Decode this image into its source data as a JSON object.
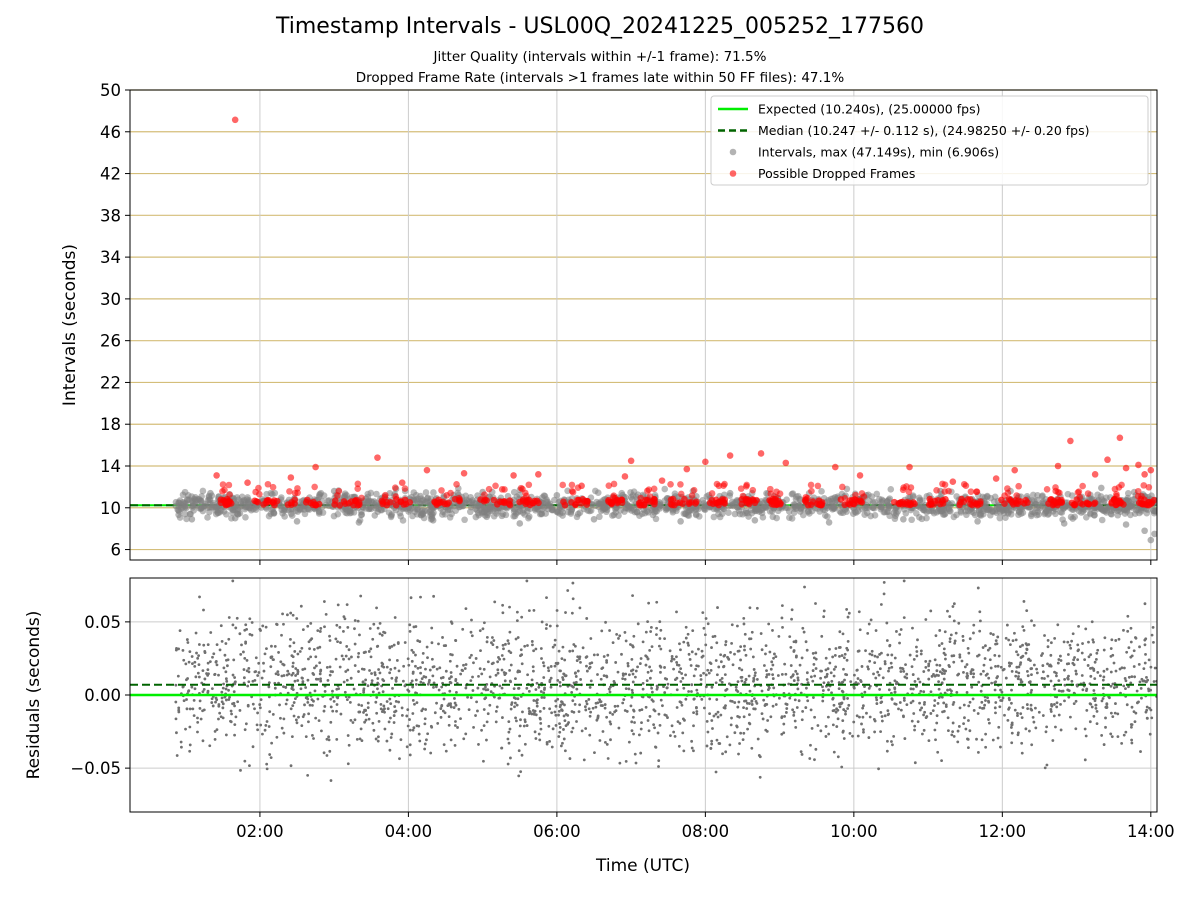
{
  "figure": {
    "title": "Timestamp Intervals - USL00Q_20241225_005252_177560",
    "subtitle_1": "Jitter Quality (intervals within +/-1 frame): 71.5%",
    "subtitle_2": "Dropped Frame Rate (intervals >1 frames late within 50 FF files): 47.1%"
  },
  "colors": {
    "expected": "#00ee00",
    "median": "#006400",
    "intervals": "#808080",
    "dropped": "#ff0000",
    "hgrid": "#d4be7a",
    "vgrid": "#cccccc"
  },
  "chart_data": [
    {
      "type": "scatter",
      "panel": "top",
      "xlabel": "",
      "ylabel": "Intervals (seconds)",
      "xlim": [
        "00:15",
        "14:05"
      ],
      "ylim": [
        5,
        50
      ],
      "yticks": [
        6,
        10,
        14,
        18,
        22,
        26,
        30,
        34,
        38,
        42,
        46,
        50
      ],
      "xticks": [
        "02:00",
        "04:00",
        "06:00",
        "08:00",
        "10:00",
        "12:00",
        "14:00"
      ],
      "show_xtick_labels": false,
      "grid": true,
      "legend_position": "top-right",
      "legend": [
        {
          "label": "Expected (10.240s), (25.00000 fps)",
          "style": "solid-line",
          "color": "#00ee00"
        },
        {
          "label": "Median (10.247 +/- 0.112 s), (24.98250 +/- 0.20 fps)",
          "style": "dashed-line",
          "color": "#006400"
        },
        {
          "label": "Intervals, max (47.149s), min (6.906s)",
          "style": "dot",
          "color": "#808080"
        },
        {
          "label": "Possible Dropped Frames",
          "style": "dot",
          "color": "#ff0000"
        }
      ],
      "series": [
        {
          "name": "Expected (10.240s), (25.00000 fps)",
          "kind": "hline",
          "y": 10.24
        },
        {
          "name": "Median (10.247 +/- 0.112 s), (24.98250 +/- 0.20 fps)",
          "kind": "hline",
          "y": 10.247
        },
        {
          "name": "Intervals, max (47.149s), min (6.906s)",
          "kind": "points",
          "x_range": [
            "00:52",
            "14:05"
          ],
          "max": 47.149,
          "min": 6.906,
          "points": [
            [
              "01:05",
              8.9
            ],
            [
              "01:20",
              11.4
            ],
            [
              "01:40",
              9.0
            ],
            [
              "02:10",
              11.3
            ],
            [
              "02:30",
              8.7
            ],
            [
              "03:00",
              11.6
            ],
            [
              "03:20",
              8.6
            ],
            [
              "03:50",
              11.8
            ],
            [
              "04:20",
              8.8
            ],
            [
              "05:00",
              11.5
            ],
            [
              "05:30",
              8.5
            ],
            [
              "06:00",
              11.2
            ],
            [
              "06:30",
              8.9
            ],
            [
              "07:00",
              11.0
            ],
            [
              "07:40",
              8.7
            ],
            [
              "08:20",
              11.4
            ],
            [
              "08:40",
              8.8
            ],
            [
              "09:10",
              11.3
            ],
            [
              "09:40",
              8.6
            ],
            [
              "10:10",
              11.2
            ],
            [
              "10:40",
              8.9
            ],
            [
              "11:10",
              11.6
            ],
            [
              "11:40",
              8.7
            ],
            [
              "12:20",
              11.1
            ],
            [
              "12:50",
              8.5
            ],
            [
              "13:20",
              11.9
            ],
            [
              "13:40",
              8.4
            ],
            [
              "13:55",
              7.8
            ],
            [
              "14:00",
              6.906
            ],
            [
              "14:03",
              7.5
            ]
          ]
        },
        {
          "name": "Possible Dropped Frames",
          "kind": "points",
          "points": [
            [
              "01:40",
              47.149
            ],
            [
              "01:25",
              13.1
            ],
            [
              "01:50",
              12.4
            ],
            [
              "02:25",
              12.9
            ],
            [
              "02:45",
              13.9
            ],
            [
              "03:35",
              14.8
            ],
            [
              "03:55",
              12.4
            ],
            [
              "04:15",
              13.6
            ],
            [
              "04:45",
              13.3
            ],
            [
              "05:25",
              13.1
            ],
            [
              "05:45",
              13.2
            ],
            [
              "06:20",
              12.1
            ],
            [
              "06:55",
              13.0
            ],
            [
              "07:00",
              14.5
            ],
            [
              "07:25",
              12.6
            ],
            [
              "07:45",
              13.7
            ],
            [
              "08:00",
              14.4
            ],
            [
              "08:20",
              15.0
            ],
            [
              "08:45",
              15.2
            ],
            [
              "09:05",
              14.3
            ],
            [
              "09:45",
              13.9
            ],
            [
              "10:05",
              13.1
            ],
            [
              "10:45",
              13.9
            ],
            [
              "11:20",
              12.5
            ],
            [
              "11:55",
              12.8
            ],
            [
              "12:10",
              13.6
            ],
            [
              "12:45",
              14.0
            ],
            [
              "12:55",
              16.4
            ],
            [
              "13:15",
              13.2
            ],
            [
              "13:25",
              14.6
            ],
            [
              "13:35",
              16.7
            ],
            [
              "13:40",
              13.8
            ],
            [
              "13:50",
              14.1
            ],
            [
              "13:55",
              13.2
            ],
            [
              "14:00",
              13.6
            ]
          ]
        }
      ]
    },
    {
      "type": "scatter",
      "panel": "bottom",
      "xlabel": "Time (UTC)",
      "ylabel": "Residuals (seconds)",
      "xlim": [
        "00:15",
        "14:05"
      ],
      "ylim": [
        -0.08,
        0.08
      ],
      "yticks": [
        0.05,
        0.0,
        -0.05
      ],
      "ytick_labels": [
        "0.05",
        "0.00",
        "−0.05"
      ],
      "xticks": [
        "02:00",
        "04:00",
        "06:00",
        "08:00",
        "10:00",
        "12:00",
        "14:00"
      ],
      "grid": true,
      "series": [
        {
          "name": "",
          "kind": "hline",
          "y": 0.0,
          "color": "#00ee00"
        },
        {
          "name": "",
          "kind": "hline",
          "y": 0.007,
          "color": "#006400",
          "dashed": true
        },
        {
          "name": "",
          "kind": "points",
          "x_range": [
            "00:52",
            "14:05"
          ],
          "y_range": [
            -0.08,
            0.076
          ]
        }
      ]
    }
  ]
}
